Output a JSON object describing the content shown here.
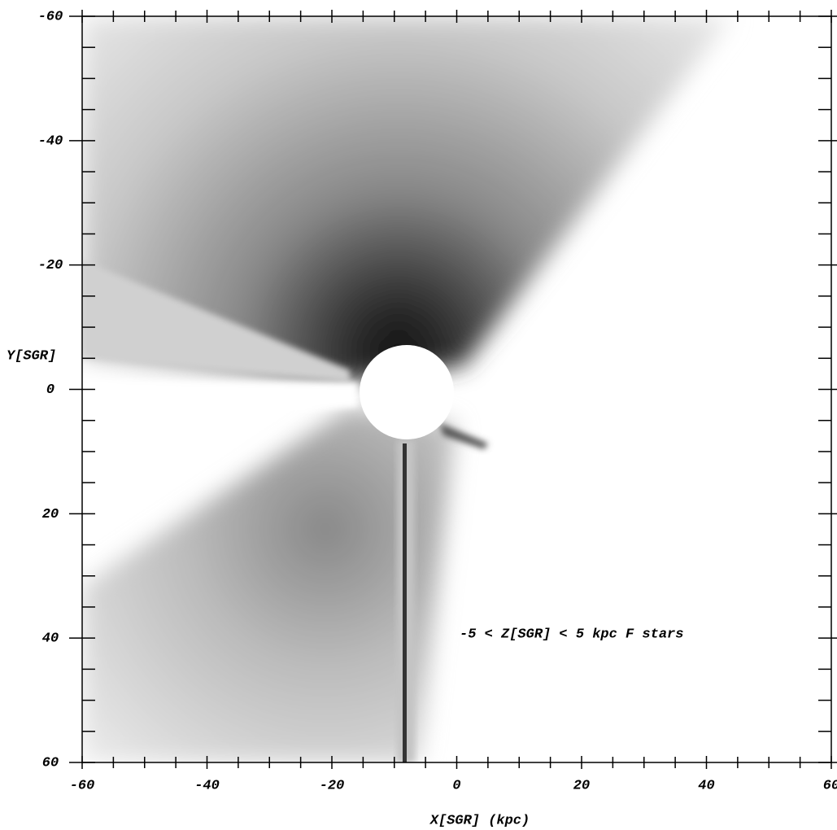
{
  "chart_data": {
    "type": "density",
    "xlabel": "X[SGR] (kpc)",
    "ylabel": "Y[SGR]",
    "annotation": "-5 < Z[SGR] < 5 kpc   F stars",
    "xlim": [
      -60,
      60
    ],
    "ylim": [
      -60,
      60
    ],
    "xticks": [
      -60,
      -40,
      -20,
      0,
      20,
      40,
      60
    ],
    "yticks": [
      -60,
      -40,
      -20,
      0,
      20,
      40,
      60
    ],
    "y_inverted": true
  }
}
